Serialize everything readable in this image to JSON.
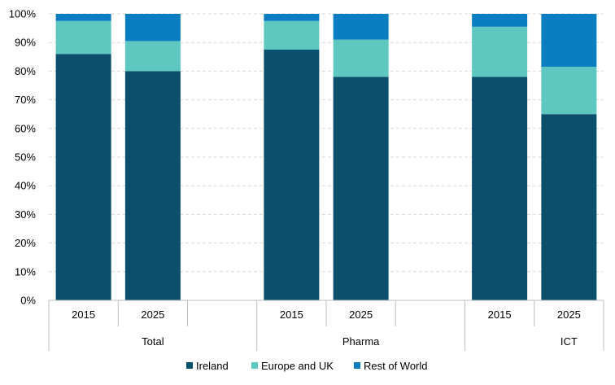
{
  "chart_data": {
    "type": "bar",
    "stacked": true,
    "percent": true,
    "groups": [
      {
        "name": "Total",
        "categories": [
          "2015",
          "2025"
        ]
      },
      {
        "name": "Pharma",
        "categories": [
          "2015",
          "2025"
        ]
      },
      {
        "name": "ICT",
        "categories": [
          "2015",
          "2025"
        ]
      }
    ],
    "series": [
      {
        "name": "Ireland",
        "color": "#0b4f6c",
        "values": [
          86,
          80,
          87.5,
          78,
          78,
          65
        ]
      },
      {
        "name": "Europe and UK",
        "color": "#5ec8c0",
        "values": [
          11.5,
          10.5,
          10,
          13,
          17.5,
          16.5
        ]
      },
      {
        "name": "Rest of World",
        "color": "#0b7ec2",
        "values": [
          2.5,
          9.5,
          2.5,
          9,
          4.5,
          18.5
        ]
      }
    ],
    "ylim": [
      0,
      100
    ],
    "yticks": [
      "0%",
      "10%",
      "20%",
      "30%",
      "40%",
      "50%",
      "60%",
      "70%",
      "80%",
      "90%",
      "100%"
    ],
    "grid": true,
    "legend_position": "bottom"
  }
}
